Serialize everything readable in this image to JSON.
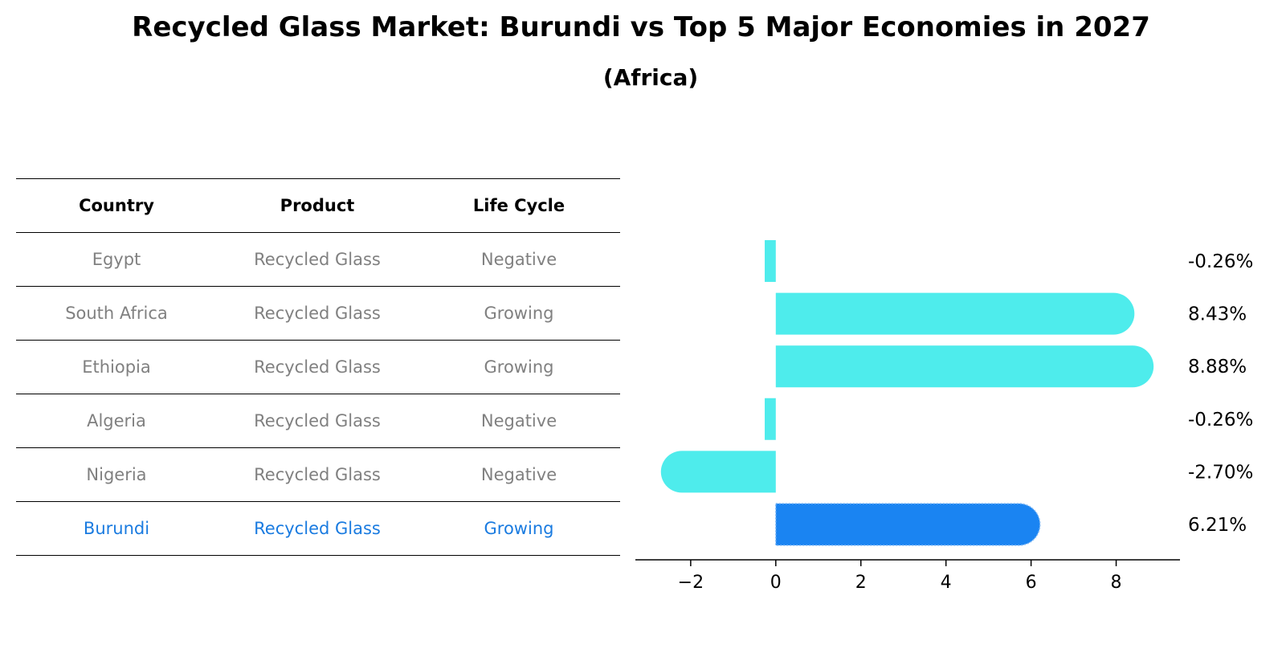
{
  "chart_data": {
    "type": "bar",
    "orientation": "horizontal",
    "title": "Recycled Glass Market: Burundi vs Top 5 Major Economies in 2027",
    "subtitle": "(Africa)",
    "table": {
      "headers": [
        "Country",
        "Product",
        "Life Cycle"
      ],
      "rows": [
        [
          "Egypt",
          "Recycled Glass",
          "Negative"
        ],
        [
          "South Africa",
          "Recycled Glass",
          "Growing"
        ],
        [
          "Ethiopia",
          "Recycled Glass",
          "Growing"
        ],
        [
          "Algeria",
          "Recycled Glass",
          "Negative"
        ],
        [
          "Nigeria",
          "Recycled Glass",
          "Negative"
        ],
        [
          "Burundi",
          "Recycled Glass",
          "Growing"
        ]
      ],
      "highlight_row": 5
    },
    "categories": [
      "Egypt",
      "South Africa",
      "Ethiopia",
      "Algeria",
      "Nigeria",
      "Burundi"
    ],
    "values": [
      -0.26,
      8.43,
      8.88,
      -0.26,
      -2.7,
      6.21
    ],
    "value_labels": [
      "-0.26%",
      "8.43%",
      "8.88%",
      "-0.26%",
      "-2.70%",
      "6.21%"
    ],
    "xlim": [
      -3.3,
      9.5
    ],
    "xticks": [
      -2,
      0,
      2,
      4,
      6,
      8
    ],
    "xtick_labels": [
      "−2",
      "0",
      "2",
      "4",
      "6",
      "8"
    ],
    "colors": {
      "default": "#4eecec",
      "highlight": "#1a84f2",
      "highlight_outline": "#7fb8f5"
    }
  }
}
